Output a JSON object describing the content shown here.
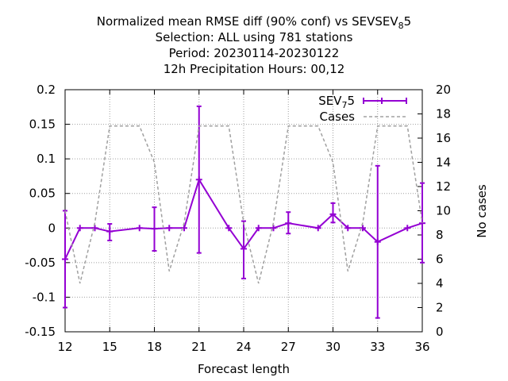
{
  "chart_data": {
    "type": "line",
    "title_lines": [
      "Normalized mean RMSE diff (90% conf) vs SEV",
      "Selection: ALL using   781 stations",
      "Period: 20230114-20230122",
      "12h Precipitation    Hours:  00,12"
    ],
    "title_ref": {
      "base": "SEV",
      "sub": "8",
      "tail": "5"
    },
    "xlabel": "Forecast length",
    "ylabel": "",
    "y2label": "No cases",
    "xlim": [
      12,
      36
    ],
    "ylim": [
      -0.15,
      0.2
    ],
    "y2lim": [
      0,
      20
    ],
    "x_ticks": [
      "12",
      "15",
      "18",
      "21",
      "24",
      "27",
      "30",
      "33",
      "36"
    ],
    "y_ticks": [
      "0.2",
      "0.15",
      "0.1",
      "0.05",
      "0",
      "-0.05",
      "-0.1",
      "-0.15"
    ],
    "y2_ticks": [
      "20",
      "18",
      "16",
      "14",
      "12",
      "10",
      "8",
      "6",
      "4",
      "2",
      "0"
    ],
    "grid": true,
    "legend_position": "top-right",
    "series": [
      {
        "name": "SEV75",
        "legend": {
          "base": "SEV",
          "sub": "7",
          "tail": "5"
        },
        "color": "#9400d3",
        "axis": "left",
        "x": [
          12,
          13,
          14,
          15,
          17,
          18,
          19,
          20,
          21,
          23,
          24,
          25,
          26,
          27,
          29,
          30,
          31,
          32,
          33,
          35,
          36
        ],
        "y": [
          -0.045,
          0.0,
          0.0,
          -0.005,
          0.0,
          -0.001,
          0.0,
          0.0,
          0.07,
          0.0,
          -0.03,
          0.0,
          0.0,
          0.007,
          0.0,
          0.02,
          0.0,
          0.0,
          -0.02,
          0.0,
          0.007
        ],
        "err_low": [
          -0.115,
          null,
          null,
          -0.018,
          null,
          -0.033,
          null,
          null,
          -0.036,
          null,
          -0.073,
          null,
          null,
          -0.008,
          null,
          0.008,
          null,
          null,
          -0.13,
          null,
          -0.05
        ],
        "err_high": [
          0.025,
          null,
          null,
          0.006,
          null,
          0.03,
          null,
          null,
          0.176,
          null,
          0.01,
          null,
          null,
          0.023,
          null,
          0.036,
          null,
          null,
          0.09,
          null,
          0.065
        ]
      },
      {
        "name": "Cases",
        "color": "#a0a0a0",
        "axis": "right",
        "dashed": true,
        "x": [
          12,
          13,
          14,
          15,
          16,
          17,
          18,
          19,
          20,
          21,
          22,
          23,
          24,
          25,
          26,
          27,
          28,
          29,
          30,
          31,
          32,
          33,
          34,
          35,
          36
        ],
        "y": [
          10,
          4,
          9,
          17,
          17,
          17,
          14,
          5,
          9,
          17,
          17,
          17,
          9,
          4,
          9,
          17,
          17,
          17,
          14,
          5,
          9,
          17,
          17,
          17,
          9
        ]
      }
    ]
  }
}
